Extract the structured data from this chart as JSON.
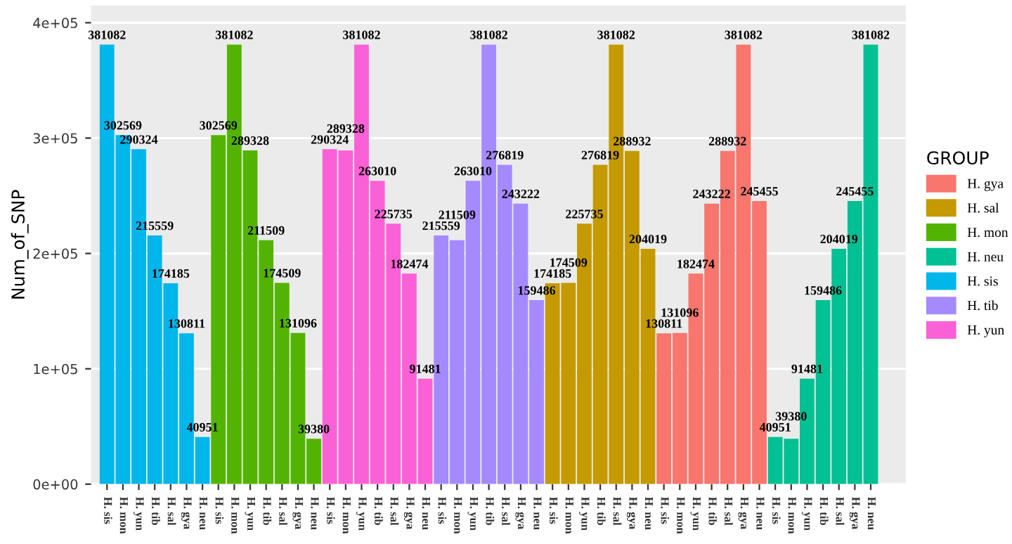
{
  "chart_data": {
    "type": "bar",
    "ylabel": "Num_of_SNP",
    "legend_title": "GROUP",
    "categories": [
      "H. sis",
      "H. mon",
      "H. yun",
      "H. tib",
      "H. sal",
      "H. gya",
      "H. neu",
      "H. sis",
      "H. mon",
      "H. yun",
      "H. tib",
      "H. sal",
      "H. gya",
      "H. neu",
      "H. sis",
      "H. mon",
      "H. yun",
      "H. tib",
      "H. sal",
      "H. gya",
      "H. neu",
      "H. sis",
      "H. mon",
      "H. yun",
      "H. tib",
      "H. sal",
      "H. gya",
      "H. neu",
      "H. sis",
      "H. mon",
      "H. yun",
      "H. tib",
      "H. sal",
      "H. gya",
      "H. neu",
      "H. sis",
      "H. mon",
      "H. yun",
      "H. tib",
      "H. sal",
      "H. gya",
      "H. neu",
      "H. sis",
      "H. mon",
      "H. yun",
      "H. tib",
      "H. sal",
      "H. gya",
      "H. neu"
    ],
    "series": [
      {
        "name": "H. gya",
        "color": "#f8766d",
        "values": [
          null,
          null,
          null,
          null,
          null,
          null,
          null,
          null,
          null,
          null,
          null,
          null,
          null,
          null,
          null,
          null,
          null,
          null,
          null,
          null,
          null,
          null,
          null,
          null,
          null,
          null,
          null,
          null,
          null,
          null,
          null,
          null,
          null,
          null,
          null,
          130811,
          131096,
          182474,
          243222,
          288932,
          381082,
          245455,
          null,
          null,
          null,
          null,
          null,
          null,
          null
        ]
      },
      {
        "name": "H. sal",
        "color": "#c49a00",
        "values": [
          null,
          null,
          null,
          null,
          null,
          null,
          null,
          null,
          null,
          null,
          null,
          null,
          null,
          null,
          null,
          null,
          null,
          null,
          null,
          null,
          null,
          null,
          null,
          null,
          null,
          null,
          null,
          null,
          174185,
          174509,
          225735,
          276819,
          381082,
          288932,
          204019,
          null,
          null,
          null,
          null,
          null,
          null,
          null,
          null,
          null,
          null,
          null,
          null,
          null,
          null
        ]
      },
      {
        "name": "H. mon",
        "color": "#53b400",
        "values": [
          null,
          null,
          null,
          null,
          null,
          null,
          null,
          302569,
          381082,
          289328,
          211509,
          174509,
          131096,
          39380,
          null,
          null,
          null,
          null,
          null,
          null,
          null,
          null,
          null,
          null,
          null,
          null,
          null,
          null,
          null,
          null,
          null,
          null,
          null,
          null,
          null,
          null,
          null,
          null,
          null,
          null,
          null,
          null,
          null,
          null,
          null,
          null,
          null,
          null,
          null
        ]
      },
      {
        "name": "H. neu",
        "color": "#00c094",
        "values": [
          null,
          null,
          null,
          null,
          null,
          null,
          null,
          null,
          null,
          null,
          null,
          null,
          null,
          null,
          null,
          null,
          null,
          null,
          null,
          null,
          null,
          null,
          null,
          null,
          null,
          null,
          null,
          null,
          null,
          null,
          null,
          null,
          null,
          null,
          null,
          null,
          null,
          null,
          null,
          null,
          null,
          null,
          40951,
          39380,
          91481,
          159486,
          204019,
          245455,
          381082
        ]
      },
      {
        "name": "H. sis",
        "color": "#00b6eb",
        "values": [
          381082,
          302569,
          290324,
          215559,
          174185,
          130811,
          40951,
          null,
          null,
          null,
          null,
          null,
          null,
          null,
          null,
          null,
          null,
          null,
          null,
          null,
          null,
          null,
          null,
          null,
          null,
          null,
          null,
          null,
          null,
          null,
          null,
          null,
          null,
          null,
          null,
          null,
          null,
          null,
          null,
          null,
          null,
          null,
          null,
          null,
          null,
          null,
          null,
          null,
          null
        ]
      },
      {
        "name": "H. tib",
        "color": "#a58aff",
        "values": [
          null,
          null,
          null,
          null,
          null,
          null,
          null,
          null,
          null,
          null,
          null,
          null,
          null,
          null,
          null,
          null,
          null,
          null,
          null,
          null,
          null,
          215559,
          211509,
          263010,
          381082,
          276819,
          243222,
          159486,
          null,
          null,
          null,
          null,
          null,
          null,
          null,
          null,
          null,
          null,
          null,
          null,
          null,
          null,
          null,
          null,
          null,
          null,
          null,
          null,
          null
        ]
      },
      {
        "name": "H. yun",
        "color": "#fb61d7",
        "values": [
          null,
          null,
          null,
          null,
          null,
          null,
          null,
          null,
          null,
          null,
          null,
          null,
          null,
          null,
          290324,
          289328,
          381082,
          263010,
          225735,
          182474,
          91481,
          null,
          null,
          null,
          null,
          null,
          null,
          null,
          null,
          null,
          null,
          null,
          null,
          null,
          null,
          null,
          null,
          null,
          null,
          null,
          null,
          null,
          null,
          null,
          null,
          null,
          null,
          null,
          null
        ]
      }
    ],
    "ylim": [
      0,
      415000
    ],
    "yticks": [
      {
        "value": 0,
        "label": "0e+00"
      },
      {
        "value": 100000,
        "label": "1e+05"
      },
      {
        "value": 200000,
        "label": "2e+05"
      },
      {
        "value": 300000,
        "label": "3e+05"
      },
      {
        "value": 400000,
        "label": "4e+05"
      }
    ],
    "data_labels": true,
    "grid": "y",
    "legend": "right"
  }
}
